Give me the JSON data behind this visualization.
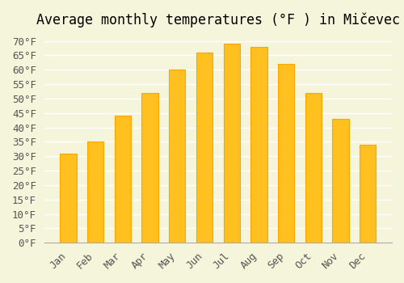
{
  "title": "Average monthly temperatures (°F ) in Mičevec",
  "months": [
    "Jan",
    "Feb",
    "Mar",
    "Apr",
    "May",
    "Jun",
    "Jul",
    "Aug",
    "Sep",
    "Oct",
    "Nov",
    "Dec"
  ],
  "values": [
    31,
    35,
    44,
    52,
    60,
    66,
    69,
    68,
    62,
    52,
    43,
    34
  ],
  "bar_color_face": "#FFC020",
  "bar_color_edge": "#FFA500",
  "background_color": "#F5F5DC",
  "grid_color": "#FFFFFF",
  "ylim": [
    0,
    72
  ],
  "ytick_step": 5,
  "title_fontsize": 12,
  "tick_fontsize": 9,
  "font_family": "monospace"
}
